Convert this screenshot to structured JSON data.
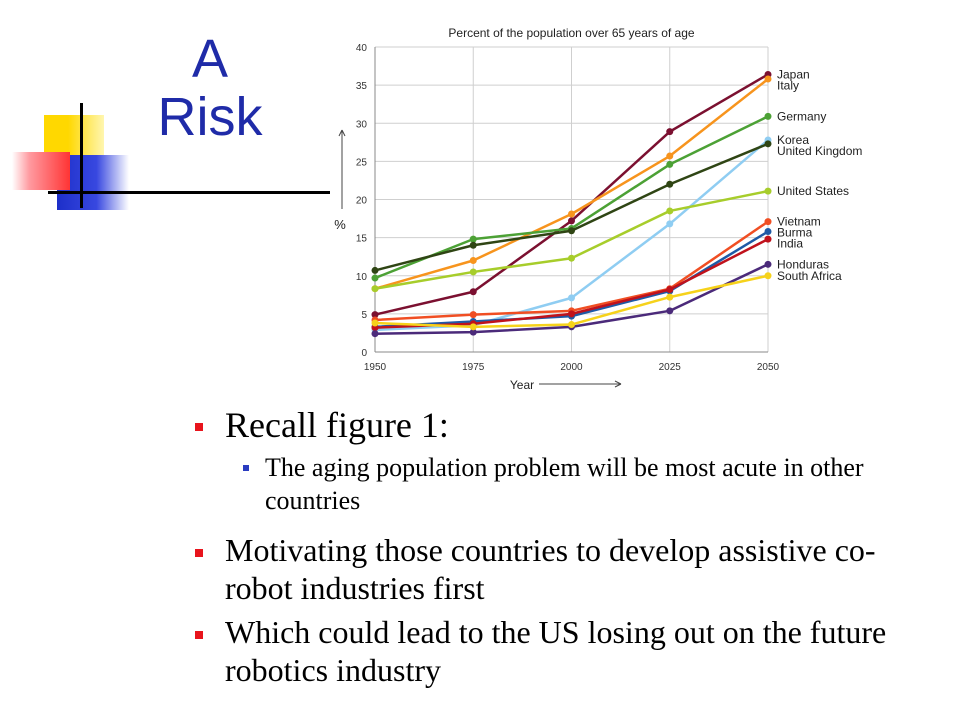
{
  "slide": {
    "title_line1": "A",
    "title_line2": "Risk"
  },
  "bullets": [
    {
      "text": "Recall figure 1:",
      "sub": [
        "The aging population problem will be most acute in other countries"
      ]
    },
    {
      "text": "Motivating those countries to develop assistive co-robot industries first"
    },
    {
      "text": "Which could lead to the US losing out on the future robotics industry"
    }
  ],
  "chart_data": {
    "type": "line",
    "title": "Percent of the population over 65 years of age",
    "xlabel": "Year",
    "ylabel": "%",
    "x": [
      1950,
      1975,
      2000,
      2025,
      2050
    ],
    "ylim": [
      0,
      40
    ],
    "yticks": [
      0,
      5,
      10,
      15,
      20,
      25,
      30,
      35,
      40
    ],
    "grid": true,
    "series": [
      {
        "name": "Japan",
        "color": "#7b1030",
        "values": [
          4.9,
          7.9,
          17.2,
          28.9,
          36.4
        ]
      },
      {
        "name": "Italy",
        "color": "#f7941d",
        "values": [
          8.3,
          12.0,
          18.1,
          25.7,
          35.8
        ]
      },
      {
        "name": "Germany",
        "color": "#4ca135",
        "values": [
          9.7,
          14.8,
          16.2,
          24.6,
          30.9
        ]
      },
      {
        "name": "Korea",
        "color": "#8fcdf2",
        "values": [
          2.9,
          3.5,
          7.1,
          16.8,
          27.8
        ]
      },
      {
        "name": "United Kingdom",
        "color": "#2f4514",
        "values": [
          10.7,
          14.0,
          15.9,
          22.0,
          27.3
        ]
      },
      {
        "name": "United States",
        "color": "#a7cd2b",
        "values": [
          8.3,
          10.5,
          12.3,
          18.5,
          21.1
        ]
      },
      {
        "name": "Vietnam",
        "color": "#f04e23",
        "values": [
          4.2,
          4.9,
          5.4,
          8.3,
          17.1
        ]
      },
      {
        "name": "Burma",
        "color": "#1f5aa6",
        "values": [
          3.3,
          4.0,
          4.7,
          8.0,
          15.8
        ]
      },
      {
        "name": "India",
        "color": "#c0121c",
        "values": [
          3.2,
          3.7,
          5.0,
          8.2,
          14.8
        ]
      },
      {
        "name": "Honduras",
        "color": "#4b2a7a",
        "values": [
          2.4,
          2.6,
          3.3,
          5.4,
          11.5
        ]
      },
      {
        "name": "South Africa",
        "color": "#f6d21b",
        "values": [
          3.8,
          3.3,
          3.6,
          7.2,
          10.0
        ]
      }
    ]
  }
}
